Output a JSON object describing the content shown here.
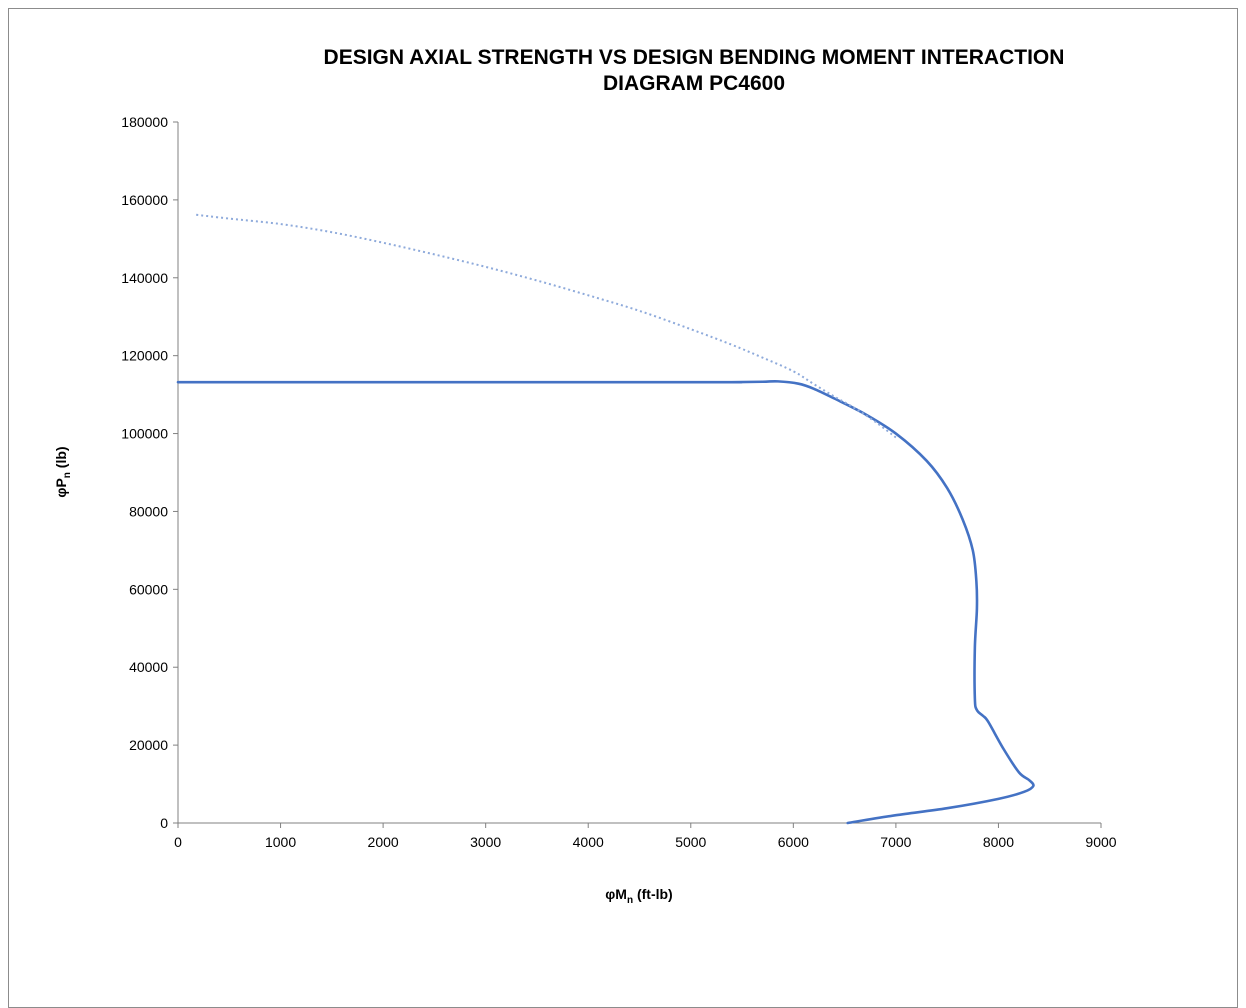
{
  "chart_data": {
    "type": "line",
    "title_line1": "DESIGN AXIAL STRENGTH VS DESIGN BENDING MOMENT INTERACTION",
    "title_line2": "DIAGRAM PC4600",
    "xlabel": {
      "prefix": "φM",
      "sub": "n",
      "suffix": " (ft-lb)"
    },
    "ylabel": {
      "prefix": "φP",
      "sub": "n",
      "suffix": " (lb)"
    },
    "xlim": [
      0,
      9000
    ],
    "ylim": [
      0,
      180000
    ],
    "xticks": [
      0,
      1000,
      2000,
      3000,
      4000,
      5000,
      6000,
      7000,
      8000,
      9000
    ],
    "yticks": [
      0,
      20000,
      40000,
      60000,
      80000,
      100000,
      120000,
      140000,
      160000,
      180000
    ],
    "grid": false,
    "series": [
      {
        "style": "solid",
        "color": "#4472c4",
        "points": [
          [
            6530,
            0
          ],
          [
            7000,
            2000
          ],
          [
            7500,
            3800
          ],
          [
            8000,
            6200
          ],
          [
            8250,
            8000
          ],
          [
            8340,
            9500
          ],
          [
            8300,
            11000
          ],
          [
            8200,
            13000
          ],
          [
            8050,
            19000
          ],
          [
            7900,
            26000
          ],
          [
            7850,
            27500
          ],
          [
            7790,
            29000
          ],
          [
            7770,
            32000
          ],
          [
            7770,
            45000
          ],
          [
            7790,
            55000
          ],
          [
            7785,
            62000
          ],
          [
            7750,
            70000
          ],
          [
            7650,
            78000
          ],
          [
            7500,
            86000
          ],
          [
            7300,
            93000
          ],
          [
            7000,
            100000
          ],
          [
            6700,
            105000
          ],
          [
            6400,
            109000
          ],
          [
            6200,
            111500
          ],
          [
            6050,
            112800
          ],
          [
            5850,
            113400
          ],
          [
            5700,
            113300
          ],
          [
            5400,
            113200
          ],
          [
            5000,
            113200
          ],
          [
            0,
            113200
          ]
        ]
      },
      {
        "style": "dotted",
        "color": "#8eaadb",
        "points": [
          [
            7000,
            99000
          ],
          [
            6800,
            103000
          ],
          [
            6600,
            106500
          ],
          [
            6400,
            109500
          ],
          [
            6200,
            112700
          ],
          [
            6000,
            116000
          ],
          [
            5700,
            119500
          ],
          [
            5400,
            122800
          ],
          [
            5000,
            126800
          ],
          [
            4500,
            131500
          ],
          [
            4000,
            135500
          ],
          [
            3500,
            139300
          ],
          [
            3000,
            142800
          ],
          [
            2500,
            146000
          ],
          [
            2000,
            149000
          ],
          [
            1500,
            151700
          ],
          [
            1000,
            153800
          ],
          [
            500,
            155200
          ],
          [
            170,
            156200
          ]
        ]
      }
    ]
  }
}
